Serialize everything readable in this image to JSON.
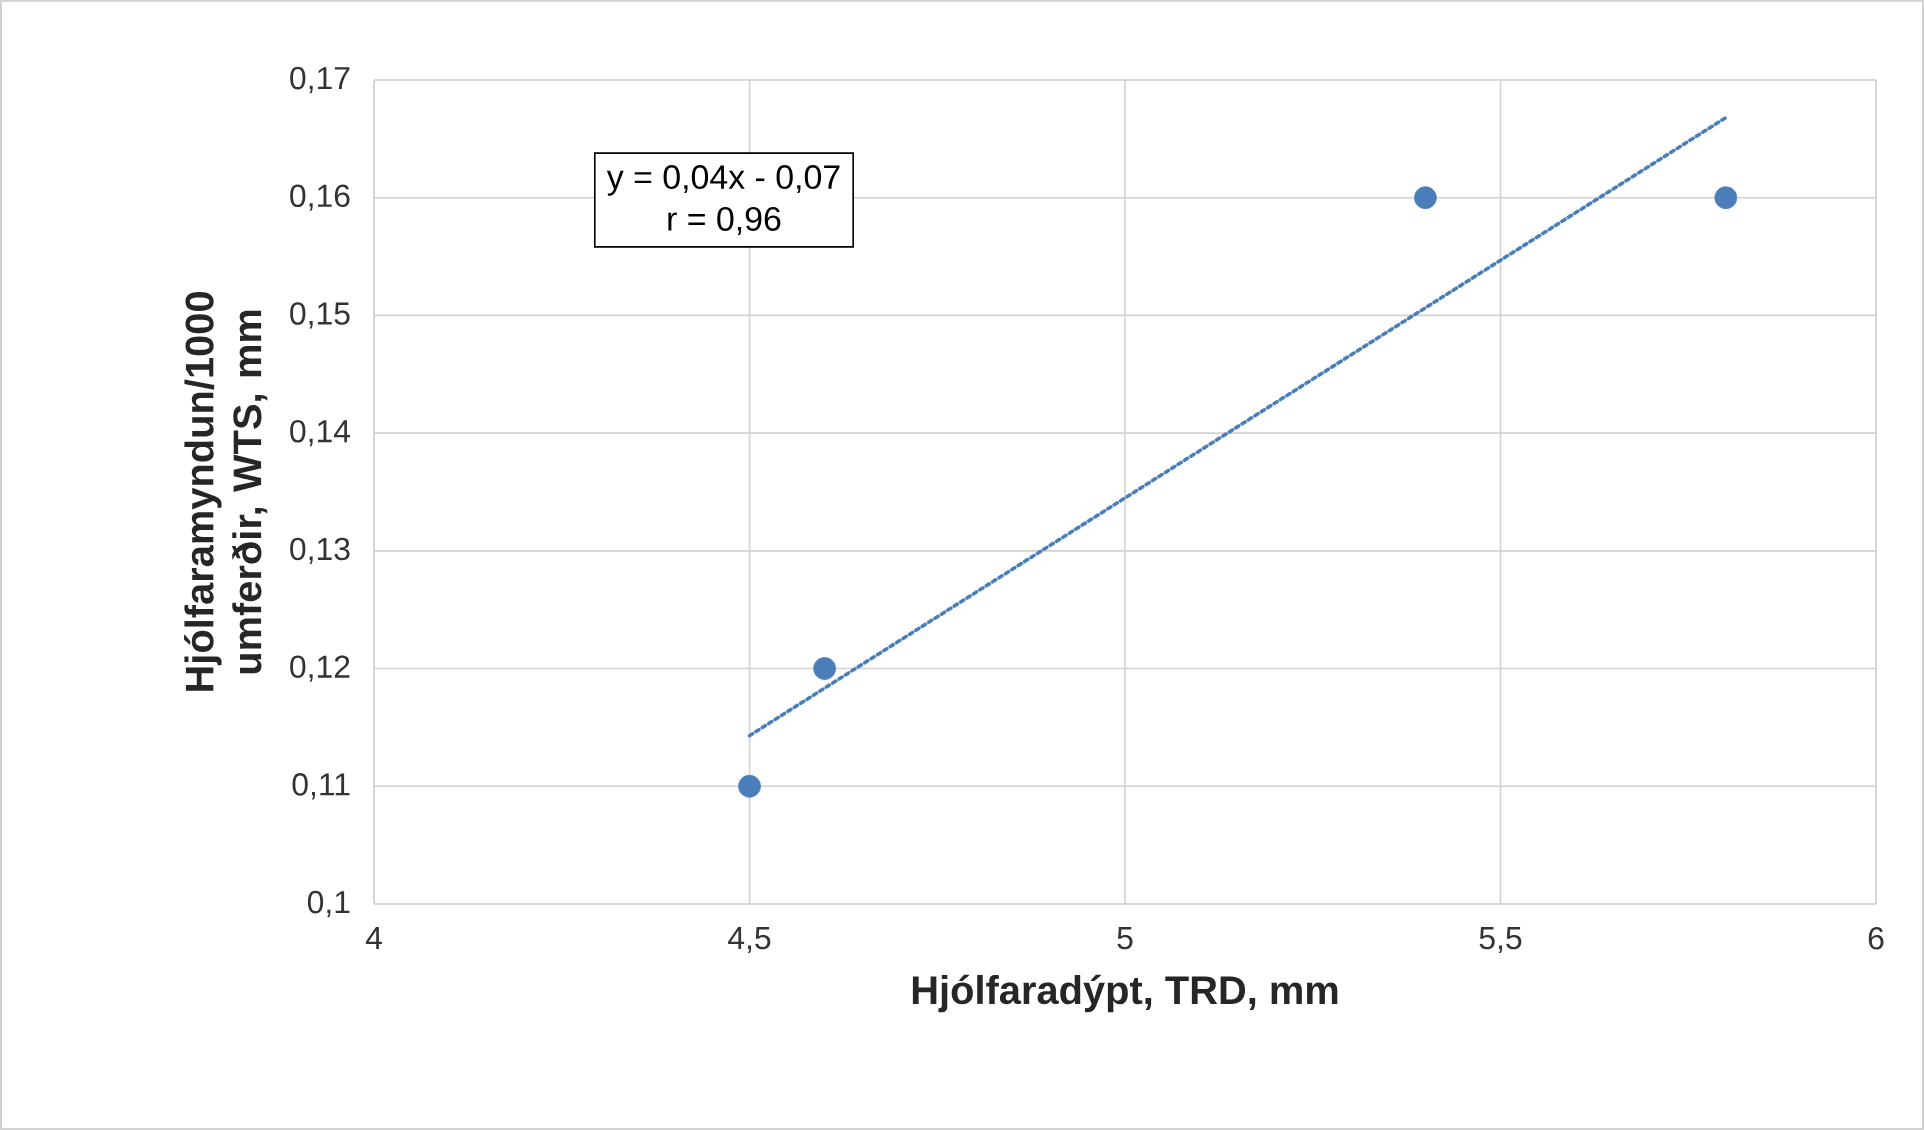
{
  "chart_data": {
    "type": "scatter",
    "xlabel": "Hjólfaradýpt, TRD, mm",
    "ylabel": "Hjólfaramyndun/1000 umferðir, WTS, mm",
    "xlim": [
      4,
      6
    ],
    "ylim": [
      0.1,
      0.17
    ],
    "xticks": [
      4,
      {
        "value": 4.5,
        "label": "4,5"
      },
      5,
      {
        "value": 5.5,
        "label": "5,5"
      },
      6
    ],
    "yticks": [
      {
        "value": 0.1,
        "label": "0,1"
      },
      {
        "value": 0.11,
        "label": "0,11"
      },
      {
        "value": 0.12,
        "label": "0,12"
      },
      {
        "value": 0.13,
        "label": "0,13"
      },
      {
        "value": 0.14,
        "label": "0,14"
      },
      {
        "value": 0.15,
        "label": "0,15"
      },
      {
        "value": 0.16,
        "label": "0,16"
      },
      {
        "value": 0.17,
        "label": "0,17"
      }
    ],
    "grid": true,
    "annotations": [
      "y = 0,04x - 0,07",
      "r = 0,96"
    ],
    "series": [
      {
        "color": "#4a7ebb",
        "marker": "circle",
        "x": [
          4.5,
          4.6,
          5.4,
          5.8
        ],
        "values": [
          0.11,
          0.12,
          0.16,
          0.16
        ]
      },
      {
        "type": "line",
        "color": "#4a7ebb",
        "marker": "none",
        "line_style": "dotted",
        "x": [
          4.5,
          5.8
        ],
        "values": [
          0.1143,
          0.1668
        ]
      }
    ]
  }
}
